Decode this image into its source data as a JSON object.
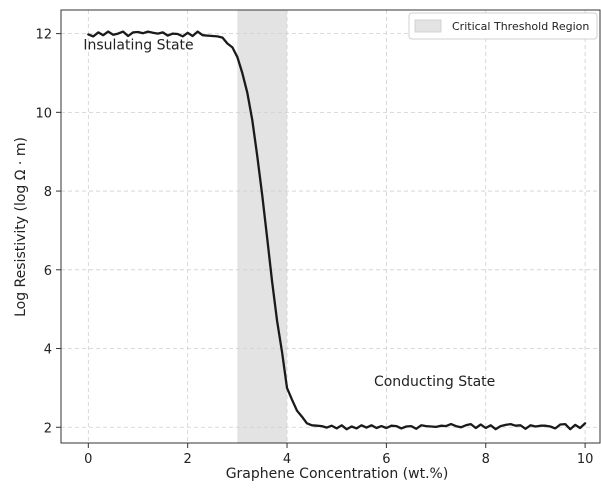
{
  "chart_data": {
    "type": "line",
    "xlabel": "Graphene Concentration (wt.%)",
    "ylabel": "Log Resistivity (log Ω · m)",
    "xlim": [
      -0.55,
      10.3
    ],
    "ylim": [
      1.6,
      12.6
    ],
    "xticks": [
      0,
      2,
      4,
      6,
      8,
      10
    ],
    "yticks": [
      2,
      4,
      6,
      8,
      10,
      12
    ],
    "grid": true,
    "legend_position": "top-right",
    "colors": {
      "line": "#1a1a1a",
      "band": "#e3e3e3",
      "grid": "#cfcfcf",
      "axis": "#333333"
    },
    "bands": [
      {
        "name": "Critical Threshold Region",
        "x0": 3.0,
        "x1": 4.0
      }
    ],
    "annotations": [
      {
        "text": "Insulating State",
        "x": -0.1,
        "y": 11.6
      },
      {
        "text": "Conducting State",
        "x": 5.75,
        "y": 3.05
      }
    ],
    "series": [
      {
        "x": [
          0,
          0.1,
          0.2,
          0.3,
          0.4,
          0.5,
          0.6,
          0.7,
          0.8,
          0.9,
          1.0,
          1.1,
          1.2,
          1.3,
          1.4,
          1.5,
          1.6,
          1.7,
          1.8,
          1.9,
          2.0,
          2.1,
          2.2,
          2.3,
          2.4,
          2.5,
          2.6,
          2.7,
          2.8,
          2.9,
          3.0,
          3.1,
          3.2,
          3.3,
          3.4,
          3.5,
          3.6,
          3.7,
          3.8,
          3.9,
          4.0,
          4.1,
          4.2,
          4.3,
          4.4,
          4.5,
          4.6,
          4.7,
          4.8,
          4.9,
          5.0,
          5.1,
          5.2,
          5.3,
          5.4,
          5.5,
          5.6,
          5.7,
          5.8,
          5.9,
          6.0,
          6.1,
          6.2,
          6.3,
          6.4,
          6.5,
          6.6,
          6.7,
          6.8,
          6.9,
          7.0,
          7.1,
          7.2,
          7.3,
          7.4,
          7.5,
          7.6,
          7.7,
          7.8,
          7.9,
          8.0,
          8.1,
          8.2,
          8.3,
          8.4,
          8.5,
          8.6,
          8.7,
          8.8,
          8.9,
          9.0,
          9.1,
          9.2,
          9.3,
          9.4,
          9.5,
          9.6,
          9.7,
          9.8,
          9.9,
          10.0
        ],
        "values": [
          11.98,
          11.93,
          12.03,
          11.96,
          12.05,
          11.97,
          12.0,
          12.05,
          11.94,
          12.03,
          12.04,
          12.01,
          12.05,
          12.02,
          12.0,
          12.03,
          11.95,
          12.0,
          11.99,
          11.93,
          12.02,
          11.94,
          12.05,
          11.96,
          11.95,
          11.94,
          11.93,
          11.9,
          11.75,
          11.65,
          11.4,
          11.0,
          10.5,
          9.8,
          8.9,
          7.9,
          6.8,
          5.7,
          4.7,
          3.9,
          3.0,
          2.7,
          2.42,
          2.27,
          2.1,
          2.05,
          2.04,
          2.03,
          1.99,
          2.04,
          1.97,
          2.05,
          1.95,
          2.02,
          1.97,
          2.05,
          1.99,
          2.05,
          1.98,
          2.03,
          1.98,
          2.04,
          2.03,
          1.97,
          2.02,
          2.03,
          1.96,
          2.05,
          2.03,
          2.02,
          2.01,
          2.04,
          2.03,
          2.08,
          2.03,
          2.0,
          2.05,
          2.08,
          1.98,
          2.07,
          1.98,
          2.05,
          1.95,
          2.03,
          2.06,
          2.08,
          2.04,
          2.05,
          1.96,
          2.05,
          2.02,
          2.04,
          2.04,
          2.02,
          1.97,
          2.07,
          2.08,
          1.95,
          2.06,
          1.98,
          2.1
        ]
      }
    ]
  }
}
